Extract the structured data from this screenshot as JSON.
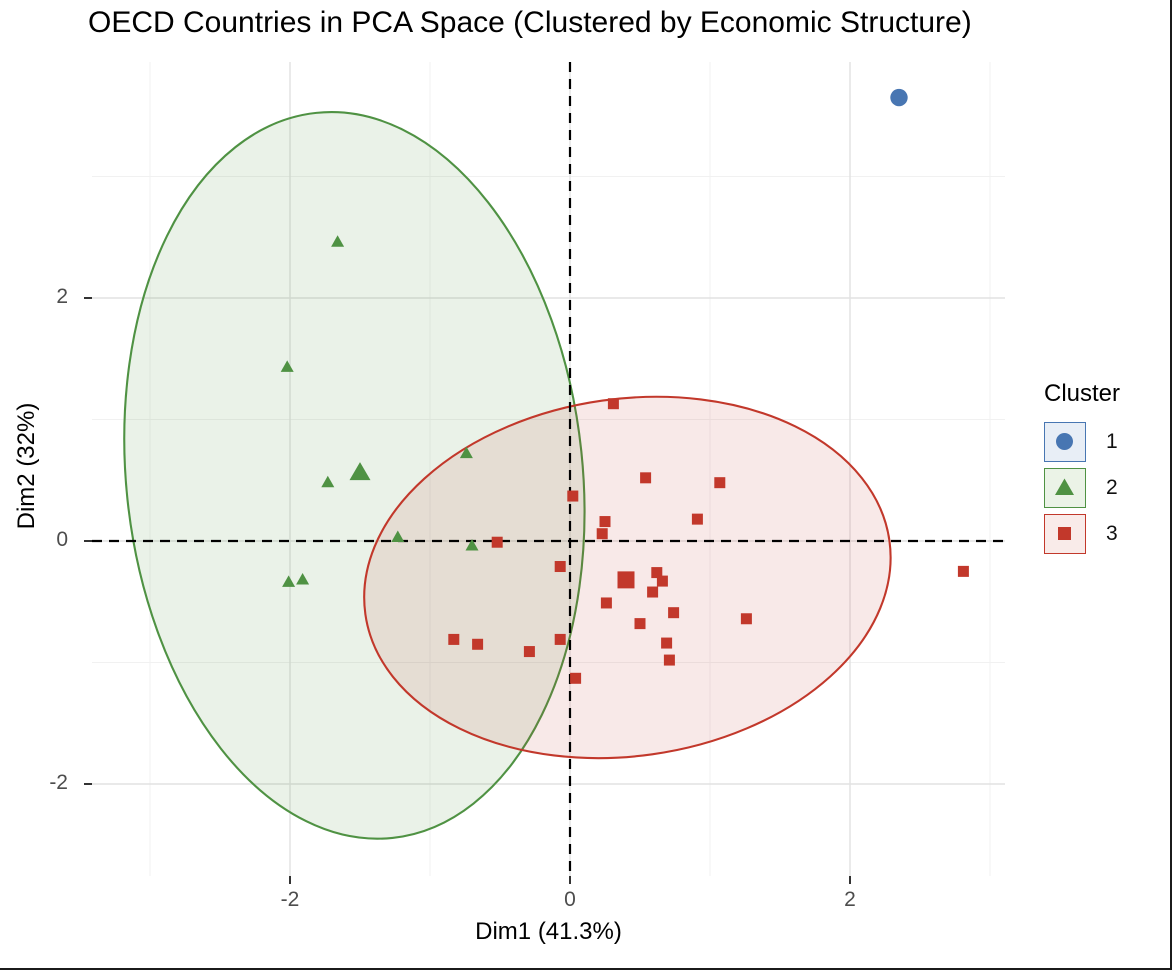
{
  "title": "OECD Countries in PCA Space (Clustered by Economic Structure)",
  "chart_data": {
    "type": "scatter",
    "title": "OECD Countries in PCA Space (Clustered by Economic Structure)",
    "xlabel": "Dim1 (41.3%)",
    "ylabel": "Dim2 (32%)",
    "xlim": [
      -3.4,
      3.1
    ],
    "ylim": [
      -2.8,
      3.95
    ],
    "x_ticks": [
      -2,
      0,
      2
    ],
    "y_ticks": [
      -2,
      0,
      2
    ],
    "grid": {
      "major_x": [
        -2,
        0,
        2
      ],
      "minor_x": [
        -3,
        -1,
        1,
        3
      ],
      "major_y": [
        -2,
        0,
        2
      ],
      "minor_y": [
        -1,
        1,
        3
      ],
      "major_color": "#E2E2E2",
      "minor_color": "#F1F1F1"
    },
    "reference_lines": {
      "vline_x": 0,
      "hline_y": 0,
      "style": "dashed",
      "color": "#000000"
    },
    "legend": {
      "title": "Cluster",
      "position": "right",
      "entries": [
        {
          "label": "1",
          "shape": "circle",
          "color": "#4876B2",
          "key_fill": "#E8EEF6"
        },
        {
          "label": "2",
          "shape": "triangle",
          "color": "#4F9243",
          "key_fill": "#EBF3E7"
        },
        {
          "label": "3",
          "shape": "square",
          "color": "#C2382B",
          "key_fill": "#F9EBE9"
        }
      ]
    },
    "series": [
      {
        "name": "1",
        "shape": "circle",
        "color": "#4876B2",
        "points": [
          [
            2.35,
            3.65
          ]
        ]
      },
      {
        "name": "2",
        "shape": "triangle",
        "color": "#4F9243",
        "points": [
          [
            -1.66,
            2.46
          ],
          [
            -2.02,
            1.43
          ],
          [
            -1.73,
            0.48
          ],
          [
            -0.74,
            0.72
          ],
          [
            -1.23,
            0.03
          ],
          [
            -0.7,
            -0.04
          ],
          [
            -2.01,
            -0.34
          ],
          [
            -1.91,
            -0.32
          ]
        ],
        "centroid": [
          -1.5,
          0.56
        ],
        "ellipse": {
          "cx": -1.54,
          "cy": 0.54,
          "rx": 1.63,
          "ry": 3.0,
          "rotate_deg": -6,
          "fill_opacity": 0.12
        }
      },
      {
        "name": "3",
        "shape": "square",
        "color": "#C2382B",
        "points": [
          [
            -0.52,
            -0.01
          ],
          [
            0.02,
            0.37
          ],
          [
            0.31,
            1.13
          ],
          [
            0.54,
            0.52
          ],
          [
            1.07,
            0.48
          ],
          [
            0.91,
            0.18
          ],
          [
            0.25,
            0.16
          ],
          [
            0.23,
            0.06
          ],
          [
            -0.07,
            -0.21
          ],
          [
            0.62,
            -0.26
          ],
          [
            0.66,
            -0.33
          ],
          [
            0.59,
            -0.42
          ],
          [
            0.26,
            -0.51
          ],
          [
            0.5,
            -0.68
          ],
          [
            0.74,
            -0.59
          ],
          [
            1.26,
            -0.64
          ],
          [
            0.69,
            -0.84
          ],
          [
            0.71,
            -0.98
          ],
          [
            -0.83,
            -0.81
          ],
          [
            -0.66,
            -0.85
          ],
          [
            -0.29,
            -0.91
          ],
          [
            -0.07,
            -0.81
          ],
          [
            0.04,
            -1.13
          ],
          [
            2.81,
            -0.25
          ]
        ],
        "centroid": [
          0.4,
          -0.32
        ],
        "ellipse": {
          "cx": 0.41,
          "cy": -0.3,
          "rx": 1.89,
          "ry": 1.47,
          "rotate_deg": -8,
          "fill_opacity": 0.11
        }
      }
    ]
  }
}
